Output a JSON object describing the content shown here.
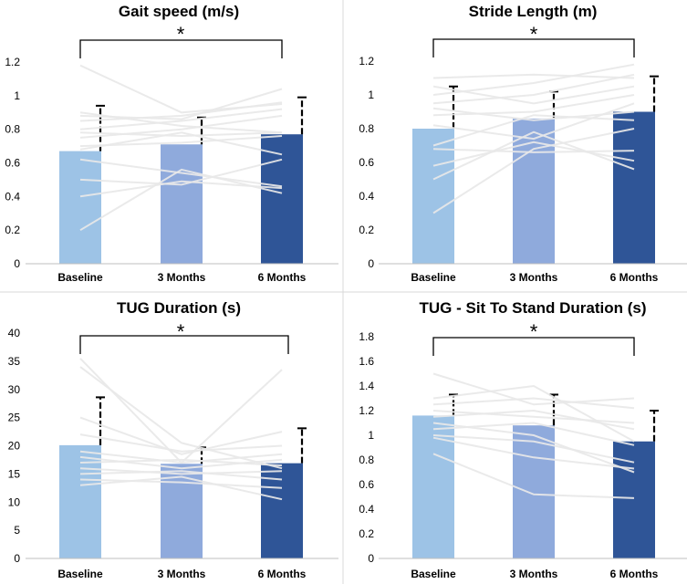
{
  "chart_data": [
    {
      "type": "bar",
      "title": "Gait speed (m/s)",
      "categories": [
        "Baseline",
        "3 Months",
        "6 Months"
      ],
      "values": [
        0.67,
        0.71,
        0.77
      ],
      "error_upper": [
        0.94,
        0.87,
        0.99
      ],
      "colors": [
        "#9dc3e6",
        "#8faadc",
        "#2f5597"
      ],
      "ylim": [
        0,
        1.2
      ],
      "yticks": [
        0,
        0.2,
        0.4,
        0.6,
        0.8,
        1,
        1.2
      ],
      "ytick_labels": [
        "0",
        "0.2",
        "0.4",
        "0.6",
        "0.8",
        "1",
        "1.2"
      ],
      "significance": {
        "from": 0,
        "to": 2,
        "label": "*"
      },
      "individual_lines": [
        [
          0.2,
          0.56,
          0.42
        ],
        [
          0.4,
          0.49,
          0.45
        ],
        [
          0.5,
          0.47,
          0.62
        ],
        [
          0.62,
          0.54,
          0.46
        ],
        [
          0.68,
          0.78,
          0.65
        ],
        [
          0.7,
          0.72,
          0.76
        ],
        [
          0.75,
          0.8,
          0.88
        ],
        [
          0.78,
          0.76,
          0.78
        ],
        [
          0.8,
          0.85,
          0.92
        ],
        [
          0.85,
          0.88,
          0.96
        ],
        [
          0.88,
          0.86,
          1.04
        ],
        [
          0.9,
          0.82,
          0.78
        ],
        [
          1.18,
          0.9,
          0.95
        ]
      ]
    },
    {
      "type": "bar",
      "title": "Stride Length (m)",
      "categories": [
        "Baseline",
        "3 Months",
        "6 Months"
      ],
      "values": [
        0.8,
        0.86,
        0.9
      ],
      "error_upper": [
        1.05,
        1.02,
        1.11
      ],
      "colors": [
        "#9dc3e6",
        "#8faadc",
        "#2f5597"
      ],
      "ylim": [
        0,
        1.2
      ],
      "yticks": [
        0,
        0.2,
        0.4,
        0.6,
        0.8,
        1,
        1.2
      ],
      "ytick_labels": [
        "0",
        "0.2",
        "0.4",
        "0.6",
        "0.8",
        "1",
        "1.2"
      ],
      "significance": {
        "from": 0,
        "to": 2,
        "label": "*"
      },
      "individual_lines": [
        [
          0.3,
          0.68,
          0.8
        ],
        [
          0.5,
          0.78,
          0.56
        ],
        [
          0.58,
          0.72,
          0.61
        ],
        [
          0.68,
          0.66,
          0.67
        ],
        [
          0.7,
          0.88,
          0.85
        ],
        [
          0.82,
          0.74,
          0.95
        ],
        [
          0.88,
          0.9,
          1.0
        ],
        [
          0.92,
          0.85,
          0.9
        ],
        [
          0.95,
          1.0,
          1.12
        ],
        [
          1.0,
          1.07,
          1.18
        ],
        [
          1.05,
          0.95,
          1.05
        ],
        [
          1.1,
          1.12,
          1.1
        ]
      ]
    },
    {
      "type": "bar",
      "title": "TUG Duration (s)",
      "categories": [
        "Baseline",
        "3 Months",
        "6 Months"
      ],
      "values": [
        20.1,
        16.8,
        16.9
      ],
      "error_upper": [
        28.6,
        19.7,
        23.1
      ],
      "colors": [
        "#9dc3e6",
        "#8faadc",
        "#2f5597"
      ],
      "ylim": [
        0,
        40
      ],
      "yticks": [
        0,
        5,
        10,
        15,
        20,
        25,
        30,
        35,
        40
      ],
      "ytick_labels": [
        "0",
        "5",
        "10",
        "15",
        "20",
        "25",
        "30",
        "35",
        "40"
      ],
      "significance": {
        "from": 0,
        "to": 2,
        "label": "*"
      },
      "individual_lines": [
        [
          13.0,
          14.5,
          10.5
        ],
        [
          14.0,
          13.5,
          12.5
        ],
        [
          15.0,
          15.5,
          14.0
        ],
        [
          16.0,
          15.0,
          15.5
        ],
        [
          17.0,
          17.5,
          16.5
        ],
        [
          18.0,
          16.0,
          17.5
        ],
        [
          19.0,
          17.0,
          18.5
        ],
        [
          22.0,
          19.0,
          20.0
        ],
        [
          25.0,
          18.5,
          22.5
        ],
        [
          34.0,
          20.5,
          16.0
        ],
        [
          35.5,
          17.0,
          33.5
        ]
      ]
    },
    {
      "type": "bar",
      "title": "TUG - Sit To Stand Duration (s)",
      "categories": [
        "Baseline",
        "3 Months",
        "6 Months"
      ],
      "values": [
        1.16,
        1.08,
        0.95
      ],
      "error_upper": [
        1.33,
        1.33,
        1.2
      ],
      "colors": [
        "#9dc3e6",
        "#8faadc",
        "#2f5597"
      ],
      "ylim": [
        0,
        1.8
      ],
      "yticks": [
        0,
        0.2,
        0.4,
        0.6,
        0.8,
        1,
        1.2,
        1.4,
        1.6,
        1.8
      ],
      "ytick_labels": [
        "0",
        "0.2",
        "0.4",
        "0.6",
        "0.8",
        "1",
        "1.2",
        "1.4",
        "1.6",
        "1.8"
      ],
      "significance": {
        "from": 0,
        "to": 2,
        "label": "*"
      },
      "individual_lines": [
        [
          0.85,
          0.52,
          0.49
        ],
        [
          0.98,
          0.82,
          0.73
        ],
        [
          1.0,
          0.95,
          0.78
        ],
        [
          1.05,
          1.1,
          0.92
        ],
        [
          1.1,
          1.0,
          0.7
        ],
        [
          1.15,
          1.2,
          1.05
        ],
        [
          1.2,
          1.15,
          1.1
        ],
        [
          1.25,
          1.3,
          1.22
        ],
        [
          1.3,
          1.4,
          0.95
        ],
        [
          1.5,
          1.25,
          1.3
        ]
      ]
    }
  ]
}
